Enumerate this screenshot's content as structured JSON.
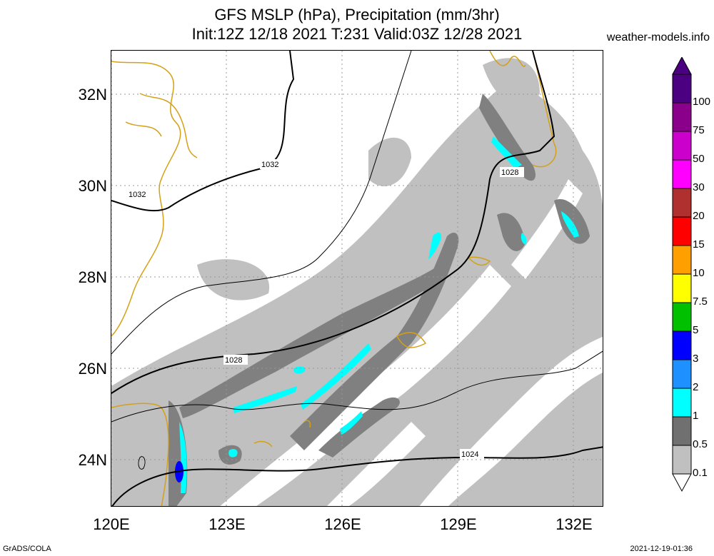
{
  "title_line1": "GFS MSLP (hPa), Precipitation (mm/3hr)",
  "title_line2": "Init:12Z 12/18 2021 T:231 Valid:03Z 12/28 2021",
  "site": "weather-models.info",
  "lat_labels": [
    "32N",
    "30N",
    "28N",
    "26N",
    "24N"
  ],
  "lon_labels": [
    "120E",
    "123E",
    "126E",
    "129E",
    "132E"
  ],
  "isobars": [
    {
      "label": "1032"
    },
    {
      "label": "1032"
    },
    {
      "label": "1028"
    },
    {
      "label": "1028"
    },
    {
      "label": "1024"
    }
  ],
  "colorbar": {
    "levels": [
      "100",
      "75",
      "50",
      "30",
      "20",
      "15",
      "10",
      "7.5",
      "5",
      "3",
      "2",
      "1",
      "0.5",
      "0.1"
    ],
    "colors": [
      "#4b0082",
      "#8b008b",
      "#cc00cc",
      "#ff00ff",
      "#b03030",
      "#ff0000",
      "#ffa000",
      "#ffff00",
      "#00c000",
      "#0000ff",
      "#1e90ff",
      "#00ffff",
      "#707070",
      "#c0c0c0"
    ]
  },
  "colors": {
    "coast": "#d4a017",
    "precip_light": "#c0c0c0",
    "precip_mid": "#808080",
    "precip_heavy": "#00ffff",
    "precip_max": "#0000ff"
  },
  "footer_left": "GrADS/COLA",
  "footer_right": "2021-12-19-01:36"
}
